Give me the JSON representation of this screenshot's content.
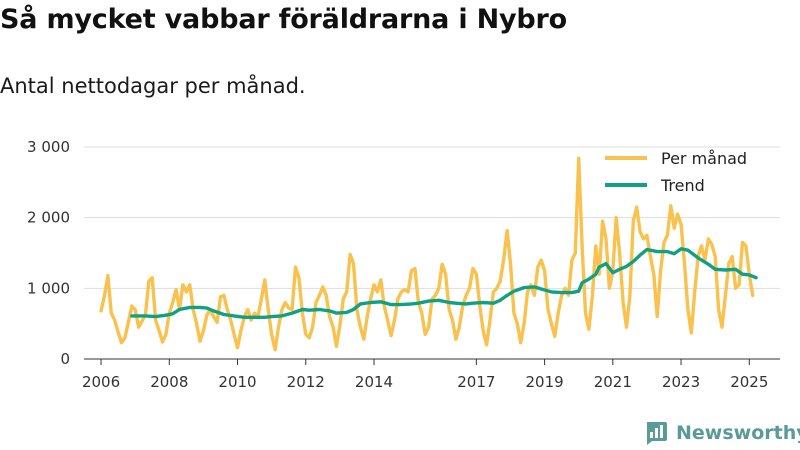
{
  "title": "Så mycket vabbar föräldrarna i Nybro",
  "subtitle": "Antal nettodagar per månad.",
  "brand": "Newsworthy",
  "colors": {
    "monthly": "#f9c24e",
    "trend": "#12a085",
    "grid": "#dddddd",
    "brand": "#5a9a97"
  },
  "chart_data": {
    "type": "line",
    "title": "Så mycket vabbar föräldrarna i Nybro",
    "subtitle": "Antal nettodagar per månad.",
    "ylim": [
      0,
      3000
    ],
    "xlim": [
      2005.5,
      2025.9
    ],
    "y_ticks": [
      0,
      1000,
      2000,
      3000
    ],
    "y_tick_labels": [
      "0",
      "1 000",
      "2 000",
      "3 000"
    ],
    "x_ticks": [
      2006,
      2008,
      2010,
      2012,
      2014,
      2017,
      2019,
      2021,
      2023,
      2025
    ],
    "x_tick_labels": [
      "2006",
      "2008",
      "2010",
      "2012",
      "2014",
      "2017",
      "2019",
      "2021",
      "2023",
      "2025"
    ],
    "grid": true,
    "legend_position": "top-right",
    "series": [
      {
        "name": "Per månad",
        "color": "#f9c24e",
        "points": [
          [
            2006.0,
            680
          ],
          [
            2006.1,
            900
          ],
          [
            2006.2,
            1180
          ],
          [
            2006.3,
            650
          ],
          [
            2006.4,
            550
          ],
          [
            2006.5,
            380
          ],
          [
            2006.6,
            230
          ],
          [
            2006.7,
            300
          ],
          [
            2006.8,
            520
          ],
          [
            2006.9,
            750
          ],
          [
            2007.0,
            700
          ],
          [
            2007.1,
            450
          ],
          [
            2007.3,
            620
          ],
          [
            2007.4,
            1100
          ],
          [
            2007.5,
            1150
          ],
          [
            2007.6,
            550
          ],
          [
            2007.7,
            400
          ],
          [
            2007.8,
            240
          ],
          [
            2007.9,
            350
          ],
          [
            2008.0,
            650
          ],
          [
            2008.1,
            800
          ],
          [
            2008.2,
            980
          ],
          [
            2008.3,
            700
          ],
          [
            2008.4,
            1050
          ],
          [
            2008.5,
            950
          ],
          [
            2008.6,
            1050
          ],
          [
            2008.7,
            700
          ],
          [
            2008.8,
            500
          ],
          [
            2008.9,
            250
          ],
          [
            2009.0,
            400
          ],
          [
            2009.1,
            620
          ],
          [
            2009.2,
            700
          ],
          [
            2009.3,
            600
          ],
          [
            2009.4,
            520
          ],
          [
            2009.5,
            880
          ],
          [
            2009.6,
            900
          ],
          [
            2009.7,
            700
          ],
          [
            2009.8,
            550
          ],
          [
            2009.9,
            350
          ],
          [
            2010.0,
            160
          ],
          [
            2010.1,
            400
          ],
          [
            2010.2,
            600
          ],
          [
            2010.3,
            700
          ],
          [
            2010.4,
            550
          ],
          [
            2010.5,
            650
          ],
          [
            2010.6,
            600
          ],
          [
            2010.7,
            850
          ],
          [
            2010.8,
            1120
          ],
          [
            2010.9,
            700
          ],
          [
            2011.0,
            350
          ],
          [
            2011.1,
            130
          ],
          [
            2011.2,
            450
          ],
          [
            2011.3,
            700
          ],
          [
            2011.4,
            800
          ],
          [
            2011.5,
            720
          ],
          [
            2011.6,
            700
          ],
          [
            2011.7,
            1300
          ],
          [
            2011.8,
            1150
          ],
          [
            2011.9,
            650
          ],
          [
            2012.0,
            350
          ],
          [
            2012.1,
            300
          ],
          [
            2012.2,
            450
          ],
          [
            2012.3,
            800
          ],
          [
            2012.4,
            900
          ],
          [
            2012.5,
            1020
          ],
          [
            2012.6,
            900
          ],
          [
            2012.7,
            600
          ],
          [
            2012.8,
            450
          ],
          [
            2012.9,
            180
          ],
          [
            2013.0,
            480
          ],
          [
            2013.1,
            850
          ],
          [
            2013.2,
            950
          ],
          [
            2013.3,
            1480
          ],
          [
            2013.4,
            1350
          ],
          [
            2013.5,
            700
          ],
          [
            2013.6,
            450
          ],
          [
            2013.7,
            280
          ],
          [
            2013.8,
            600
          ],
          [
            2013.9,
            850
          ],
          [
            2014.0,
            1050
          ],
          [
            2014.1,
            950
          ],
          [
            2014.2,
            1120
          ],
          [
            2014.3,
            750
          ],
          [
            2014.4,
            550
          ],
          [
            2014.5,
            330
          ],
          [
            2014.6,
            550
          ],
          [
            2014.7,
            850
          ],
          [
            2014.8,
            950
          ],
          [
            2014.9,
            980
          ],
          [
            2015.0,
            950
          ],
          [
            2015.1,
            1250
          ],
          [
            2015.2,
            1280
          ],
          [
            2015.3,
            800
          ],
          [
            2015.4,
            650
          ],
          [
            2015.5,
            350
          ],
          [
            2015.6,
            450
          ],
          [
            2015.7,
            850
          ],
          [
            2015.8,
            900
          ],
          [
            2015.9,
            1000
          ],
          [
            2016.0,
            1340
          ],
          [
            2016.1,
            1200
          ],
          [
            2016.2,
            700
          ],
          [
            2016.3,
            550
          ],
          [
            2016.4,
            280
          ],
          [
            2016.5,
            450
          ],
          [
            2016.6,
            750
          ],
          [
            2016.7,
            900
          ],
          [
            2016.8,
            1000
          ],
          [
            2016.9,
            1280
          ],
          [
            2017.0,
            1200
          ],
          [
            2017.1,
            750
          ],
          [
            2017.2,
            400
          ],
          [
            2017.3,
            200
          ],
          [
            2017.4,
            550
          ],
          [
            2017.5,
            950
          ],
          [
            2017.6,
            1000
          ],
          [
            2017.7,
            1100
          ],
          [
            2017.8,
            1400
          ],
          [
            2017.9,
            1820
          ],
          [
            2018.0,
            1350
          ],
          [
            2018.1,
            650
          ],
          [
            2018.2,
            500
          ],
          [
            2018.3,
            230
          ],
          [
            2018.4,
            500
          ],
          [
            2018.5,
            950
          ],
          [
            2018.6,
            1050
          ],
          [
            2018.7,
            900
          ],
          [
            2018.8,
            1300
          ],
          [
            2018.9,
            1400
          ],
          [
            2019.0,
            1250
          ],
          [
            2019.1,
            700
          ],
          [
            2019.2,
            500
          ],
          [
            2019.3,
            320
          ],
          [
            2019.4,
            650
          ],
          [
            2019.5,
            900
          ],
          [
            2019.6,
            1000
          ],
          [
            2019.7,
            900
          ],
          [
            2019.8,
            1400
          ],
          [
            2019.9,
            1500
          ],
          [
            2020.0,
            2840
          ],
          [
            2020.1,
            1600
          ],
          [
            2020.2,
            650
          ],
          [
            2020.3,
            420
          ],
          [
            2020.4,
            900
          ],
          [
            2020.5,
            1600
          ],
          [
            2020.6,
            1200
          ],
          [
            2020.7,
            1950
          ],
          [
            2020.8,
            1700
          ],
          [
            2020.9,
            1000
          ],
          [
            2021.0,
            1250
          ],
          [
            2021.1,
            2000
          ],
          [
            2021.2,
            1500
          ],
          [
            2021.3,
            800
          ],
          [
            2021.4,
            450
          ],
          [
            2021.5,
            900
          ],
          [
            2021.6,
            1950
          ],
          [
            2021.7,
            2150
          ],
          [
            2021.8,
            1800
          ],
          [
            2021.9,
            1700
          ],
          [
            2022.0,
            1750
          ],
          [
            2022.1,
            1450
          ],
          [
            2022.2,
            1200
          ],
          [
            2022.3,
            600
          ],
          [
            2022.4,
            1250
          ],
          [
            2022.5,
            1650
          ],
          [
            2022.6,
            1750
          ],
          [
            2022.7,
            2170
          ],
          [
            2022.8,
            1850
          ],
          [
            2022.9,
            2050
          ],
          [
            2023.0,
            1900
          ],
          [
            2023.1,
            1350
          ],
          [
            2023.2,
            700
          ],
          [
            2023.3,
            370
          ],
          [
            2023.4,
            950
          ],
          [
            2023.5,
            1450
          ],
          [
            2023.6,
            1600
          ],
          [
            2023.7,
            1400
          ],
          [
            2023.8,
            1700
          ],
          [
            2023.9,
            1620
          ],
          [
            2024.0,
            1450
          ],
          [
            2024.1,
            700
          ],
          [
            2024.2,
            450
          ],
          [
            2024.3,
            900
          ],
          [
            2024.4,
            1350
          ],
          [
            2024.5,
            1450
          ],
          [
            2024.6,
            1000
          ],
          [
            2024.7,
            1050
          ],
          [
            2024.8,
            1650
          ],
          [
            2024.9,
            1600
          ],
          [
            2025.0,
            1200
          ],
          [
            2025.1,
            900
          ]
        ]
      },
      {
        "name": "Trend",
        "color": "#12a085",
        "points": [
          [
            2006.9,
            610
          ],
          [
            2007.3,
            610
          ],
          [
            2007.6,
            600
          ],
          [
            2007.9,
            620
          ],
          [
            2008.1,
            640
          ],
          [
            2008.3,
            700
          ],
          [
            2008.6,
            730
          ],
          [
            2008.9,
            730
          ],
          [
            2009.1,
            720
          ],
          [
            2009.3,
            680
          ],
          [
            2009.6,
            630
          ],
          [
            2009.9,
            610
          ],
          [
            2010.2,
            590
          ],
          [
            2010.5,
            590
          ],
          [
            2010.8,
            590
          ],
          [
            2011.0,
            600
          ],
          [
            2011.3,
            610
          ],
          [
            2011.6,
            650
          ],
          [
            2011.9,
            700
          ],
          [
            2012.1,
            690
          ],
          [
            2012.4,
            700
          ],
          [
            2012.7,
            680
          ],
          [
            2012.9,
            650
          ],
          [
            2013.2,
            660
          ],
          [
            2013.4,
            700
          ],
          [
            2013.6,
            780
          ],
          [
            2013.9,
            800
          ],
          [
            2014.2,
            810
          ],
          [
            2014.5,
            770
          ],
          [
            2014.8,
            770
          ],
          [
            2015.1,
            780
          ],
          [
            2015.3,
            790
          ],
          [
            2015.6,
            820
          ],
          [
            2015.9,
            830
          ],
          [
            2016.2,
            800
          ],
          [
            2016.4,
            790
          ],
          [
            2016.7,
            780
          ],
          [
            2016.9,
            790
          ],
          [
            2017.2,
            800
          ],
          [
            2017.5,
            790
          ],
          [
            2017.7,
            830
          ],
          [
            2017.9,
            900
          ],
          [
            2018.1,
            960
          ],
          [
            2018.4,
            1010
          ],
          [
            2018.7,
            1020
          ],
          [
            2018.9,
            990
          ],
          [
            2019.2,
            950
          ],
          [
            2019.5,
            940
          ],
          [
            2019.8,
            940
          ],
          [
            2020.0,
            960
          ],
          [
            2020.1,
            1080
          ],
          [
            2020.3,
            1130
          ],
          [
            2020.5,
            1200
          ],
          [
            2020.6,
            1300
          ],
          [
            2020.8,
            1350
          ],
          [
            2021.0,
            1220
          ],
          [
            2021.2,
            1270
          ],
          [
            2021.4,
            1310
          ],
          [
            2021.6,
            1380
          ],
          [
            2021.8,
            1470
          ],
          [
            2022.0,
            1550
          ],
          [
            2022.3,
            1520
          ],
          [
            2022.6,
            1520
          ],
          [
            2022.8,
            1490
          ],
          [
            2023.0,
            1560
          ],
          [
            2023.2,
            1540
          ],
          [
            2023.5,
            1430
          ],
          [
            2023.8,
            1340
          ],
          [
            2024.0,
            1270
          ],
          [
            2024.3,
            1260
          ],
          [
            2024.6,
            1270
          ],
          [
            2024.8,
            1200
          ],
          [
            2025.0,
            1190
          ],
          [
            2025.2,
            1150
          ]
        ]
      }
    ]
  }
}
